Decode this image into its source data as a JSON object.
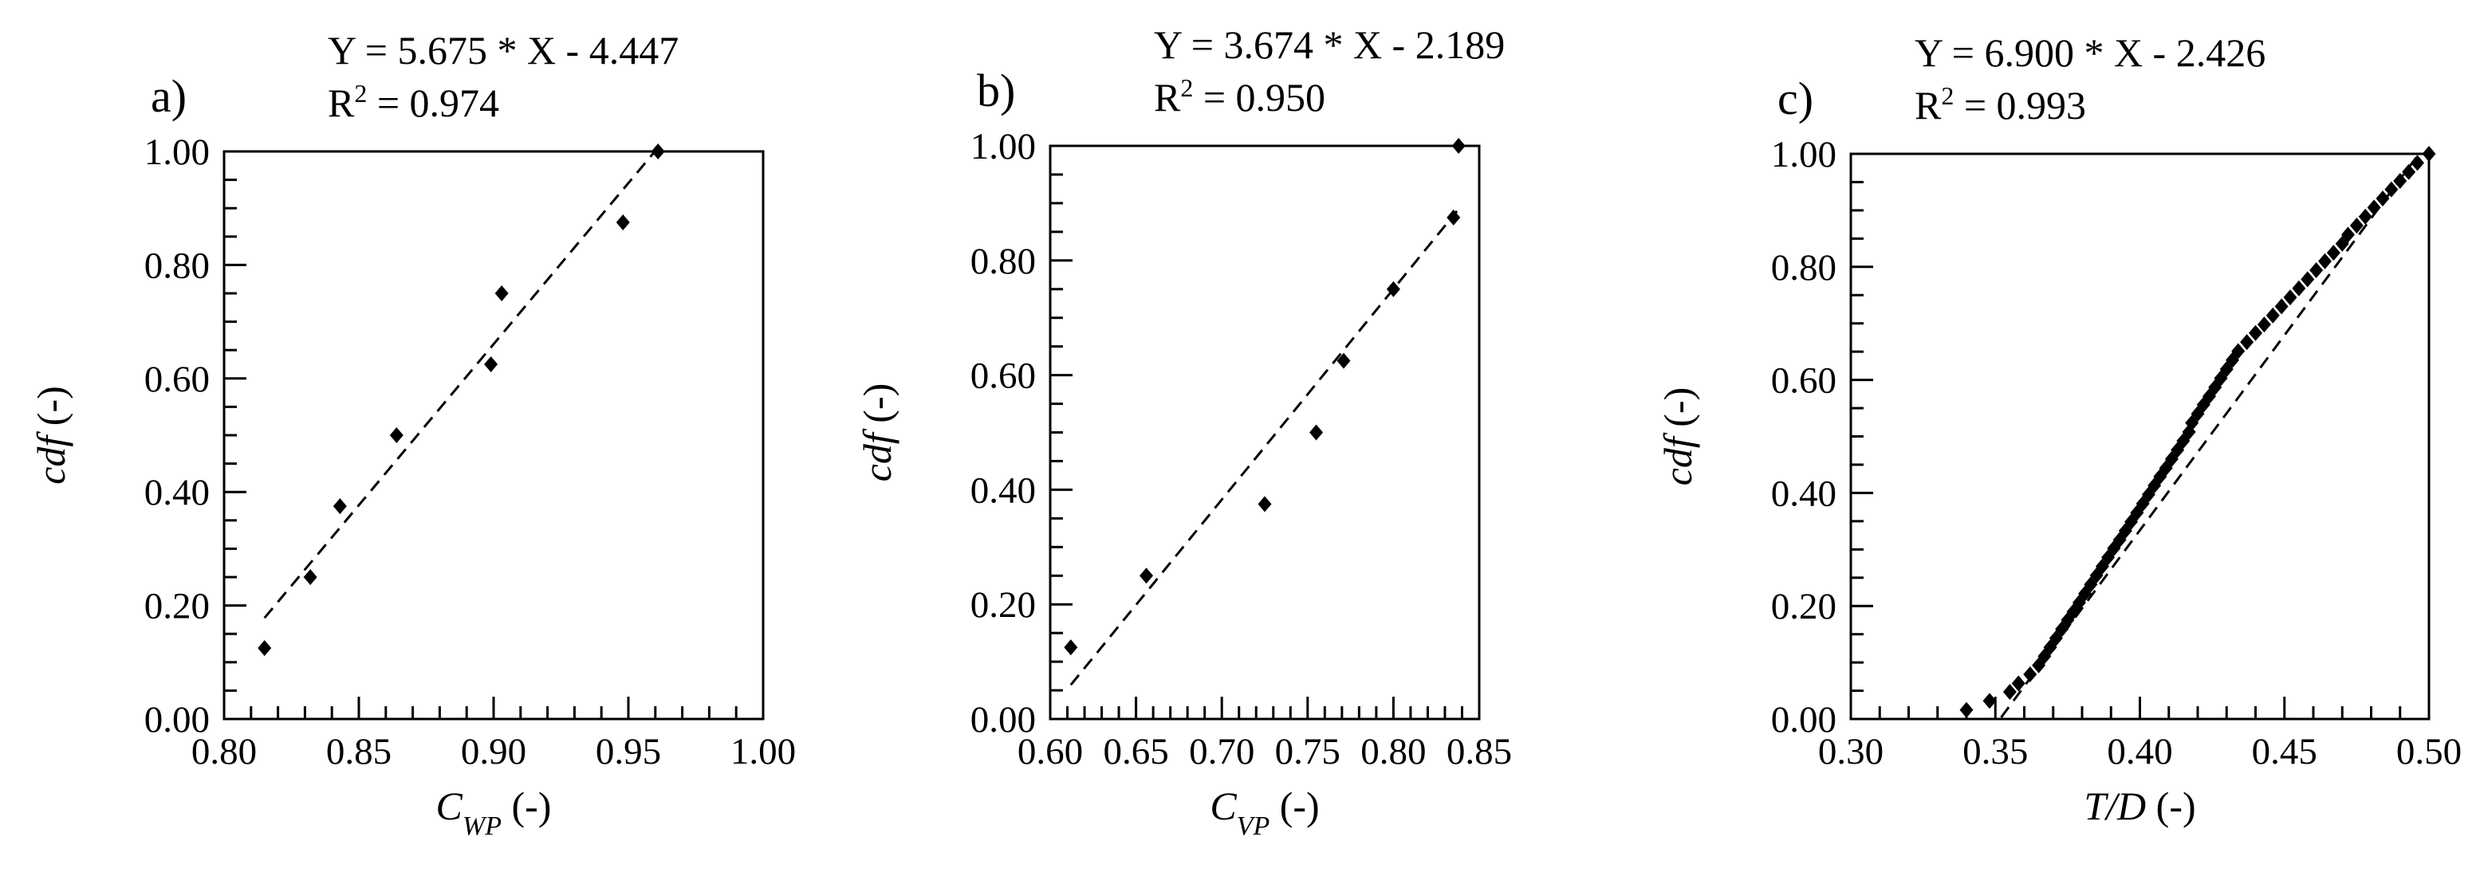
{
  "chart_data": [
    {
      "type": "scatter",
      "panel_label": "a)",
      "equation": "Y = 5.675 * X - 4.447",
      "r2_prefix": "R",
      "r2_sup": "2",
      "r2_value": " = 0.974",
      "xlabel": {
        "symbol": "C",
        "subscript": "WP",
        "unit": " (-)"
      },
      "ylabel": {
        "symbol": "cdf",
        "unit": " (-)"
      },
      "xlim": [
        0.8,
        1.0
      ],
      "ylim": [
        0.0,
        1.0
      ],
      "x_ticks": [
        "0.80",
        "0.85",
        "0.90",
        "0.95",
        "1.00"
      ],
      "y_ticks": [
        "0.00",
        "0.20",
        "0.40",
        "0.60",
        "0.80",
        "1.00"
      ],
      "x_minor_step": 0.01,
      "y_minor_step": 0.05,
      "fit": {
        "slope": 5.675,
        "intercept": -4.447,
        "x_range": [
          0.815,
          0.962
        ]
      },
      "x": [
        0.815,
        0.832,
        0.843,
        0.864,
        0.899,
        0.903,
        0.948,
        0.961
      ],
      "y": [
        0.125,
        0.25,
        0.375,
        0.5,
        0.625,
        0.75,
        0.875,
        1.0
      ]
    },
    {
      "type": "scatter",
      "panel_label": "b)",
      "equation": "Y = 3.674 * X - 2.189",
      "r2_prefix": "R",
      "r2_sup": "2",
      "r2_value": " = 0.950",
      "xlabel": {
        "symbol": "C",
        "subscript": "VP",
        "unit": " (-)"
      },
      "ylabel": {
        "symbol": "cdf",
        "unit": " (-)"
      },
      "xlim": [
        0.6,
        0.85
      ],
      "ylim": [
        0.0,
        1.0
      ],
      "x_ticks": [
        "0.60",
        "0.65",
        "0.70",
        "0.75",
        "0.80",
        "0.85"
      ],
      "y_ticks": [
        "0.00",
        "0.20",
        "0.40",
        "0.60",
        "0.80",
        "1.00"
      ],
      "x_minor_step": 0.01,
      "y_minor_step": 0.05,
      "fit": {
        "slope": 3.674,
        "intercept": -2.189,
        "x_range": [
          0.612,
          0.837
        ]
      },
      "x": [
        0.612,
        0.656,
        0.725,
        0.755,
        0.771,
        0.8,
        0.835,
        0.838
      ],
      "y": [
        0.125,
        0.25,
        0.375,
        0.5,
        0.625,
        0.75,
        0.875,
        1.0
      ]
    },
    {
      "type": "scatter",
      "panel_label": "c)",
      "equation": "Y = 6.900 * X - 2.426",
      "r2_prefix": "R",
      "r2_sup": "2",
      "r2_value": " = 0.993",
      "xlabel": {
        "symbol": "T/D",
        "subscript": "",
        "unit": " (-)"
      },
      "ylabel": {
        "symbol": "cdf",
        "unit": " (-)"
      },
      "xlim": [
        0.3,
        0.5
      ],
      "ylim": [
        0.0,
        1.0
      ],
      "x_ticks": [
        "0.30",
        "0.35",
        "0.40",
        "0.45",
        "0.50"
      ],
      "y_ticks": [
        "0.00",
        "0.20",
        "0.40",
        "0.60",
        "0.80",
        "1.00"
      ],
      "x_minor_step": 0.01,
      "y_minor_step": 0.05,
      "fit": {
        "slope": 6.9,
        "intercept": -2.426,
        "x_range": [
          0.352,
          0.497
        ]
      },
      "x": [
        0.34,
        0.348,
        0.355,
        0.358,
        0.362,
        0.365,
        0.367,
        0.369,
        0.371,
        0.373,
        0.375,
        0.377,
        0.379,
        0.381,
        0.383,
        0.385,
        0.387,
        0.389,
        0.391,
        0.393,
        0.395,
        0.397,
        0.399,
        0.401,
        0.403,
        0.405,
        0.407,
        0.409,
        0.411,
        0.413,
        0.415,
        0.417,
        0.418,
        0.42,
        0.422,
        0.424,
        0.426,
        0.428,
        0.43,
        0.432,
        0.434,
        0.437,
        0.44,
        0.443,
        0.446,
        0.449,
        0.452,
        0.455,
        0.458,
        0.461,
        0.464,
        0.467,
        0.47,
        0.472,
        0.475,
        0.478,
        0.481,
        0.484,
        0.487,
        0.49,
        0.493,
        0.496,
        0.5
      ],
      "y": [
        0.016,
        0.032,
        0.048,
        0.063,
        0.079,
        0.095,
        0.111,
        0.127,
        0.143,
        0.159,
        0.175,
        0.19,
        0.206,
        0.222,
        0.238,
        0.254,
        0.27,
        0.286,
        0.302,
        0.317,
        0.333,
        0.349,
        0.365,
        0.381,
        0.397,
        0.413,
        0.429,
        0.444,
        0.46,
        0.476,
        0.492,
        0.508,
        0.524,
        0.54,
        0.556,
        0.571,
        0.587,
        0.603,
        0.619,
        0.635,
        0.651,
        0.667,
        0.683,
        0.698,
        0.714,
        0.73,
        0.746,
        0.762,
        0.778,
        0.794,
        0.81,
        0.825,
        0.841,
        0.857,
        0.873,
        0.889,
        0.905,
        0.921,
        0.937,
        0.952,
        0.968,
        0.984,
        1.0
      ]
    }
  ]
}
